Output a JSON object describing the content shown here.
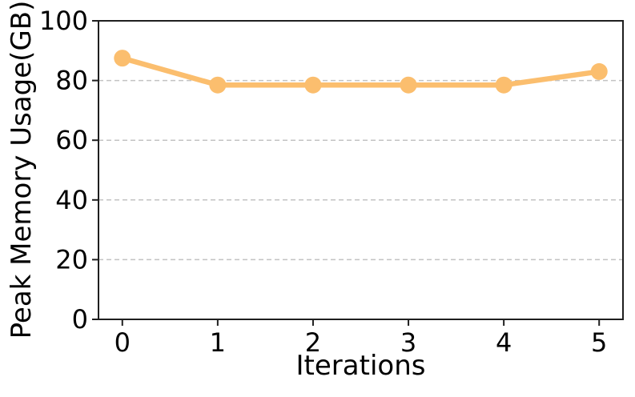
{
  "figure": {
    "background": "#ffffff"
  },
  "chart_data": {
    "type": "line",
    "title": "",
    "xlabel": "Iterations",
    "ylabel": "Peak Memory Usage(GB)",
    "x": [
      0,
      1,
      2,
      3,
      4,
      5
    ],
    "series": [
      {
        "values": [
          87.5,
          78.5,
          78.5,
          78.5,
          78.5,
          83
        ],
        "color": "#FBBE6E",
        "marker": "circle"
      }
    ],
    "xlim": [
      -0.25,
      5.25
    ],
    "ylim": [
      0,
      100
    ],
    "xticks": [
      0,
      1,
      2,
      3,
      4,
      5
    ],
    "yticks": [
      0,
      20,
      40,
      60,
      80,
      100
    ],
    "grid": "horizontal-dashed",
    "legend": "none",
    "grid_color": "#c3c3c3",
    "axis_color": "#1f1f1f",
    "tick_label_color": "#000000"
  }
}
